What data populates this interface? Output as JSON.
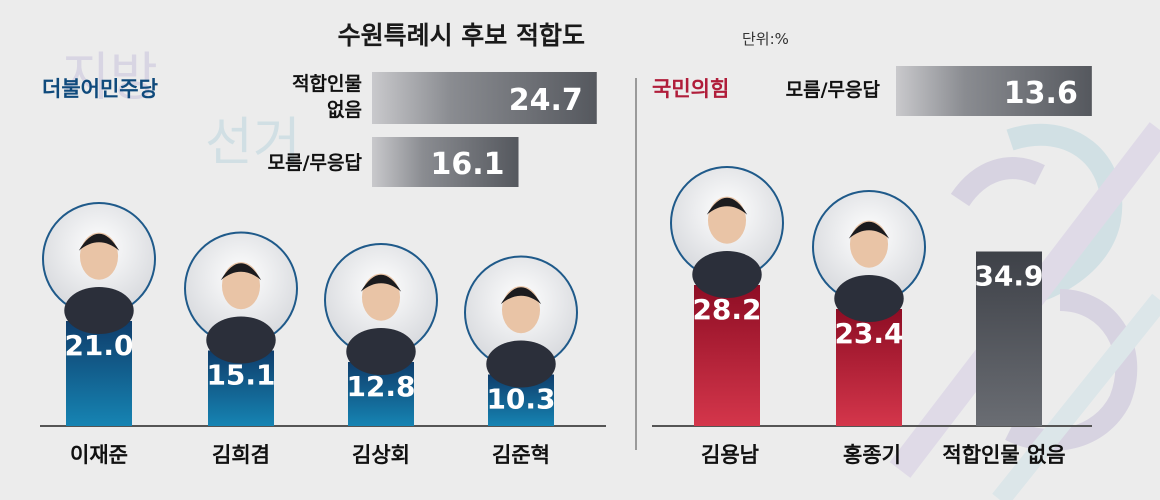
{
  "title": "수원특례시 후보 적합도",
  "unit": "단위:%",
  "watermark": [
    "지방",
    "선거"
  ],
  "colors": {
    "dem_top": "#0f3d6b",
    "dem_bottom": "#1684b3",
    "ppp_top": "#8e0d24",
    "ppp_bottom": "#d4364b",
    "gray_bar": "#4a4d54",
    "gray_hbar": "#6c6f75"
  },
  "chart_data": [
    {
      "type": "bar",
      "group": "더불어민주당",
      "group_color": "#0f4a7c",
      "categories": [
        "이재준",
        "김희겸",
        "김상회",
        "김준혁"
      ],
      "values": [
        21.0,
        15.1,
        12.8,
        10.3
      ],
      "labels": [
        "21.0",
        "15.1",
        "12.8",
        "10.3"
      ]
    },
    {
      "type": "bar",
      "group": "더불어민주당",
      "orientation": "horizontal",
      "categories": [
        "적합인물 없음",
        "모름/무응답"
      ],
      "values": [
        24.7,
        16.1
      ],
      "labels": [
        "24.7",
        "16.1"
      ],
      "category_lines": [
        [
          "적합인물",
          "없음"
        ],
        [
          "모름/무응답"
        ]
      ]
    },
    {
      "type": "bar",
      "group": "국민의힘",
      "group_color": "#b01d3a",
      "categories": [
        "김용남",
        "홍종기",
        "적합인물 없음"
      ],
      "values": [
        28.2,
        23.4,
        34.9
      ],
      "labels": [
        "28.2",
        "23.4",
        "34.9"
      ]
    },
    {
      "type": "bar",
      "group": "국민의힘",
      "orientation": "horizontal",
      "categories": [
        "모름/무응답"
      ],
      "values": [
        13.6
      ],
      "labels": [
        "13.6"
      ]
    }
  ]
}
